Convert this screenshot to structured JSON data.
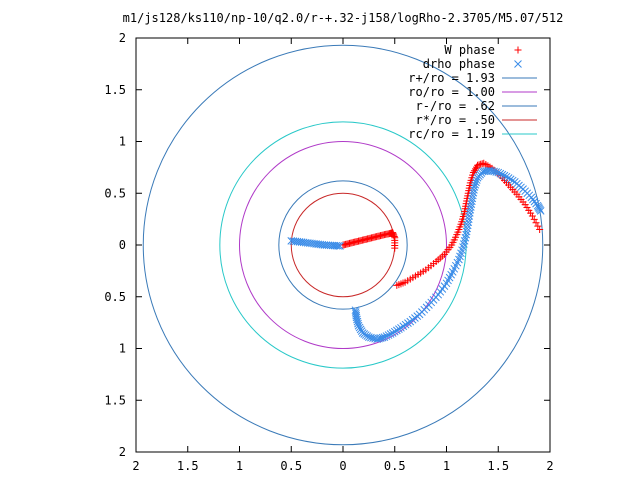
{
  "chart_data": {
    "type": "scatter",
    "title": "m1/js128/ks110/np-10/q2.0/r-+.32-j158/logRho-2.3705/M5.07/512",
    "xlim": [
      -2,
      2
    ],
    "ylim": [
      -2,
      2
    ],
    "x_ticks": [
      {
        "value": -2,
        "label": "2"
      },
      {
        "value": -1.5,
        "label": "1.5"
      },
      {
        "value": -1,
        "label": "1"
      },
      {
        "value": -0.5,
        "label": "0.5"
      },
      {
        "value": 0,
        "label": "0"
      },
      {
        "value": 0.5,
        "label": "0.5"
      },
      {
        "value": 1,
        "label": "1"
      },
      {
        "value": 1.5,
        "label": "1.5"
      },
      {
        "value": 2,
        "label": "2"
      }
    ],
    "y_ticks": [
      {
        "value": 2,
        "label": "2"
      },
      {
        "value": 1.5,
        "label": "1.5"
      },
      {
        "value": 1,
        "label": "1"
      },
      {
        "value": 0.5,
        "label": "0.5"
      },
      {
        "value": 0,
        "label": "0"
      },
      {
        "value": -0.5,
        "label": "0.5"
      },
      {
        "value": -1,
        "label": "1"
      },
      {
        "value": -1.5,
        "label": "1.5"
      },
      {
        "value": -2,
        "label": "2"
      }
    ],
    "grid": false,
    "legend_position": "top-right",
    "circles": [
      {
        "label": "r+/ro = 1.93",
        "radius": 1.93,
        "color": "#3a7ab8"
      },
      {
        "label": "ro/ro = 1.00",
        "radius": 1.0,
        "color": "#b03ac8"
      },
      {
        "label": "r-/ro = .62",
        "radius": 0.62,
        "color": "#3a7ab8"
      },
      {
        "label": "r*/ro = .50",
        "radius": 0.5,
        "color": "#c82828"
      },
      {
        "label": "rc/ro = 1.19",
        "radius": 1.19,
        "color": "#28c8c8"
      }
    ],
    "series": [
      {
        "name": "W phase",
        "marker": "plus",
        "color": "#ff0000",
        "points": [
          [
            0.0,
            0.0
          ],
          [
            0.05,
            0.012
          ],
          [
            0.1,
            0.025
          ],
          [
            0.15,
            0.037
          ],
          [
            0.2,
            0.05
          ],
          [
            0.25,
            0.062
          ],
          [
            0.3,
            0.075
          ],
          [
            0.35,
            0.087
          ],
          [
            0.4,
            0.1
          ],
          [
            0.45,
            0.11
          ],
          [
            0.48,
            0.12
          ],
          [
            0.5,
            0.07
          ],
          [
            0.5,
            -0.03
          ],
          [
            0.52,
            -0.39
          ],
          [
            0.6,
            -0.36
          ],
          [
            0.7,
            -0.3
          ],
          [
            0.8,
            -0.24
          ],
          [
            0.9,
            -0.16
          ],
          [
            0.98,
            -0.09
          ],
          [
            1.05,
            0.0
          ],
          [
            1.1,
            0.1
          ],
          [
            1.14,
            0.2
          ],
          [
            1.17,
            0.3
          ],
          [
            1.19,
            0.4
          ],
          [
            1.21,
            0.5
          ],
          [
            1.23,
            0.6
          ],
          [
            1.26,
            0.7
          ],
          [
            1.3,
            0.77
          ],
          [
            1.36,
            0.79
          ],
          [
            1.44,
            0.74
          ],
          [
            1.52,
            0.67
          ],
          [
            1.6,
            0.58
          ],
          [
            1.68,
            0.49
          ],
          [
            1.76,
            0.39
          ],
          [
            1.83,
            0.28
          ],
          [
            1.9,
            0.15
          ]
        ]
      },
      {
        "name": "drho phase",
        "marker": "cross",
        "color": "#3a8ce8",
        "points": [
          [
            -0.5,
            0.04
          ],
          [
            -0.42,
            0.03
          ],
          [
            -0.34,
            0.02
          ],
          [
            -0.26,
            0.01
          ],
          [
            -0.18,
            0.0
          ],
          [
            -0.1,
            -0.005
          ],
          [
            -0.03,
            -0.01
          ],
          [
            0.12,
            -0.63
          ],
          [
            0.13,
            -0.7
          ],
          [
            0.15,
            -0.78
          ],
          [
            0.19,
            -0.85
          ],
          [
            0.25,
            -0.89
          ],
          [
            0.33,
            -0.91
          ],
          [
            0.4,
            -0.89
          ],
          [
            0.48,
            -0.85
          ],
          [
            0.56,
            -0.8
          ],
          [
            0.65,
            -0.74
          ],
          [
            0.74,
            -0.67
          ],
          [
            0.83,
            -0.58
          ],
          [
            0.92,
            -0.48
          ],
          [
            1.0,
            -0.37
          ],
          [
            1.06,
            -0.26
          ],
          [
            1.12,
            -0.14
          ],
          [
            1.16,
            -0.02
          ],
          [
            1.19,
            0.1
          ],
          [
            1.21,
            0.22
          ],
          [
            1.23,
            0.34
          ],
          [
            1.25,
            0.45
          ],
          [
            1.27,
            0.56
          ],
          [
            1.3,
            0.65
          ],
          [
            1.35,
            0.71
          ],
          [
            1.42,
            0.72
          ],
          [
            1.5,
            0.7
          ],
          [
            1.58,
            0.66
          ],
          [
            1.66,
            0.61
          ],
          [
            1.74,
            0.54
          ],
          [
            1.82,
            0.46
          ],
          [
            1.88,
            0.38
          ],
          [
            1.91,
            0.33
          ]
        ]
      }
    ]
  }
}
